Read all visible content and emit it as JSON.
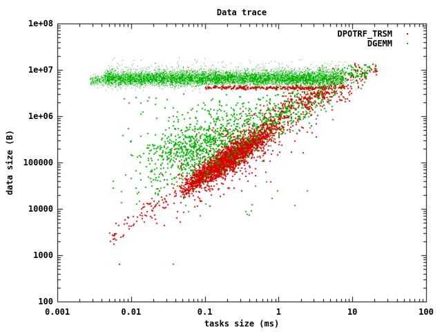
{
  "chart_data": {
    "type": "scatter",
    "title": "Data trace",
    "xlabel": "tasks size (ms)",
    "ylabel": "data size (B)",
    "x_scale": "log",
    "y_scale": "log",
    "xlim": [
      0.001,
      100
    ],
    "ylim": [
      100,
      100000000
    ],
    "grid": false,
    "legend_position": "top-right-inside",
    "x_ticks": [
      {
        "v": 0.001,
        "label": "0.001"
      },
      {
        "v": 0.01,
        "label": "0.01"
      },
      {
        "v": 0.1,
        "label": "0.1"
      },
      {
        "v": 1,
        "label": "1"
      },
      {
        "v": 10,
        "label": "10"
      },
      {
        "v": 100,
        "label": "100"
      }
    ],
    "y_ticks": [
      {
        "v": 100,
        "label": "100"
      },
      {
        "v": 1000,
        "label": "1000"
      },
      {
        "v": 10000,
        "label": "10000"
      },
      {
        "v": 100000,
        "label": "100000"
      },
      {
        "v": 1000000,
        "label": "1e+06"
      },
      {
        "v": 10000000,
        "label": "1e+07"
      },
      {
        "v": 100000000,
        "label": "1e+08"
      }
    ],
    "series": [
      {
        "name": "DPOTRF_TRSM",
        "color": "#dd0000",
        "marker": "dot"
      },
      {
        "name": "DGEMM",
        "color": "#00b400",
        "marker": "dot"
      }
    ],
    "axis_color": "#000000",
    "clusters": [
      {
        "series": 0,
        "n": 65,
        "size": 2,
        "x": {
          "dist": "uniform",
          "a": -2.3,
          "b": -1.5
        },
        "y": {
          "dist": "line",
          "base": 5.08,
          "slope": 1.05,
          "ref": -0.7,
          "sd": 0.15
        }
      },
      {
        "series": 0,
        "n": 2200,
        "size": 2,
        "x": {
          "dist": "gauss",
          "mean": -0.7,
          "sd": 0.3,
          "min": -1.35,
          "max": 0.05
        },
        "y": {
          "dist": "line",
          "base": 5.08,
          "slope": 1.05,
          "ref": -0.7,
          "sd": 0.12
        }
      },
      {
        "series": 0,
        "n": 620,
        "size": 2,
        "x": {
          "dist": "gauss",
          "mean": -0.5,
          "sd": 0.5,
          "min": -1.9,
          "max": 0.55
        },
        "y": {
          "dist": "line",
          "base": 5.08,
          "slope": 1.0,
          "ref": -0.7,
          "sd": 0.32
        }
      },
      {
        "series": 0,
        "n": 300,
        "size": 2,
        "x": {
          "dist": "gauss",
          "mean": 0.55,
          "sd": 0.33,
          "min": 0.02,
          "max": 1.33
        },
        "y": {
          "dist": "line",
          "base": 6.45,
          "slope": 0.55,
          "ref": 0.5,
          "sd": 0.16
        }
      },
      {
        "series": 0,
        "n": 230,
        "size": 2,
        "x": {
          "dist": "uniform",
          "a": -1.0,
          "b": 0.5
        },
        "y": {
          "dist": "gauss",
          "mean": 6.625,
          "sd": 0.018
        }
      },
      {
        "series": 0,
        "n": 30,
        "size": 2,
        "x": {
          "dist": "uniform",
          "a": 0.5,
          "b": 0.9
        },
        "y": {
          "dist": "gauss",
          "mean": 6.64,
          "sd": 0.02
        }
      },
      {
        "series": 0,
        "n": 90,
        "size": 1,
        "x": {
          "dist": "uniform",
          "a": -1.3,
          "b": 1.1
        },
        "y": {
          "dist": "gauss",
          "mean": 6.85,
          "sd": 0.12
        }
      },
      {
        "series": 0,
        "n": 22,
        "size": 2,
        "x": {
          "dist": "uniform",
          "a": 0.95,
          "b": 1.33
        },
        "y": {
          "dist": "gauss",
          "mean": 7.02,
          "sd": 0.07
        }
      },
      {
        "series": 1,
        "n": 160,
        "size": 1,
        "x": {
          "dist": "uniform",
          "a": -2.56,
          "b": -2.35
        },
        "y": {
          "dist": "gauss",
          "mean": 6.78,
          "sd": 0.06
        }
      },
      {
        "series": 1,
        "n": 6200,
        "size": 1,
        "x": {
          "dist": "uniform",
          "a": -2.36,
          "b": 0.52
        },
        "y": {
          "dist": "gauss",
          "mean": 6.82,
          "sd": 0.075
        }
      },
      {
        "series": 1,
        "n": 650,
        "size": 1,
        "x": {
          "dist": "uniform",
          "a": -2.35,
          "b": 0.6
        },
        "y": {
          "dist": "gauss",
          "mean": 6.9,
          "sd": 0.14,
          "min": 6.55,
          "max": 7.28
        }
      },
      {
        "series": 1,
        "n": 700,
        "size": 1,
        "x": {
          "dist": "uniform",
          "a": 0.52,
          "b": 0.88
        },
        "y": {
          "dist": "gauss",
          "mean": 6.82,
          "sd": 0.09
        }
      },
      {
        "series": 1,
        "n": 150,
        "size": 1,
        "x": {
          "dist": "uniform",
          "a": 0.52,
          "b": 0.92
        },
        "y": {
          "dist": "gauss",
          "mean": 6.94,
          "sd": 0.12
        }
      },
      {
        "series": 1,
        "n": 65,
        "size": 2,
        "x": {
          "dist": "uniform",
          "a": 0.88,
          "b": 1.18
        },
        "y": {
          "dist": "gauss",
          "mean": 6.93,
          "sd": 0.1
        }
      },
      {
        "series": 1,
        "n": 10,
        "size": 2,
        "x": {
          "dist": "uniform",
          "a": 1.18,
          "b": 1.33
        },
        "y": {
          "dist": "gauss",
          "mean": 7.0,
          "sd": 0.06
        }
      },
      {
        "series": 1,
        "n": 850,
        "size": 2,
        "x": {
          "dist": "gauss",
          "mean": -1.1,
          "sd": 0.4,
          "min": -2.3,
          "max": -0.2
        },
        "y": {
          "dist": "line",
          "base": 5.35,
          "slope": 0.5,
          "ref": -1.1,
          "sd": 0.33
        }
      },
      {
        "series": 1,
        "n": 300,
        "size": 2,
        "x": {
          "dist": "gauss",
          "mean": 0.05,
          "sd": 0.38,
          "min": -0.5,
          "max": 0.95
        },
        "y": {
          "dist": "line",
          "base": 6.05,
          "slope": 0.75,
          "ref": 0.05,
          "sd": 0.24
        }
      },
      {
        "series": 1,
        "n": 50,
        "size": 2,
        "x": {
          "dist": "uniform",
          "a": -2.1,
          "b": 0.5
        },
        "y": {
          "dist": "uniform",
          "a": 5.95,
          "b": 6.5
        }
      },
      {
        "series": 1,
        "n": 28,
        "size": 2,
        "x": {
          "dist": "uniform",
          "a": -2.25,
          "b": 0.4
        },
        "y": {
          "dist": "uniform",
          "a": 3.85,
          "b": 4.65
        }
      }
    ],
    "outlier_points": [
      {
        "series": 0,
        "log_x": -2.17,
        "log_y": 2.82
      },
      {
        "series": 1,
        "log_x": -1.44,
        "log_y": 2.82
      },
      {
        "series": 0,
        "log_x": -2.12,
        "log_y": 3.42
      }
    ]
  }
}
